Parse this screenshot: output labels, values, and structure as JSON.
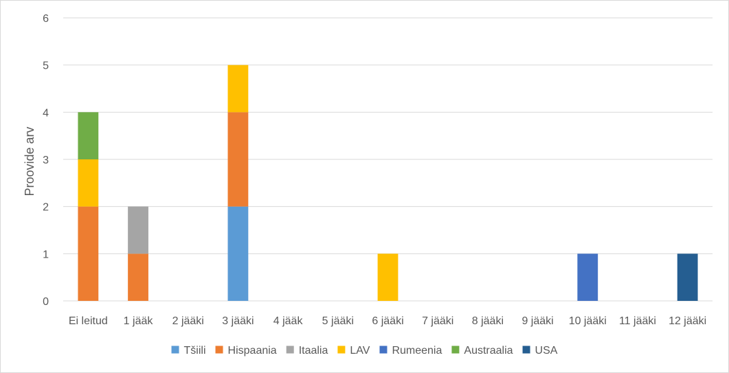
{
  "chart_data": {
    "type": "bar",
    "stacked": true,
    "title": "",
    "xlabel": "",
    "ylabel": "Proovide arv",
    "ylim": [
      0,
      6
    ],
    "yticks": [
      0,
      1,
      2,
      3,
      4,
      5,
      6
    ],
    "grid": true,
    "legend_position": "bottom",
    "categories": [
      "Ei leitud",
      "1 jääk",
      "2 jääki",
      "3 jääki",
      "4 jääk",
      "5 jääki",
      "6 jääki",
      "7 jääki",
      "8 jääki",
      "9 jääki",
      "10 jääki",
      "11 jääki",
      "12 jääki"
    ],
    "series": [
      {
        "name": "Tšiili",
        "color": "#5b9bd5",
        "values": [
          0,
          0,
          0,
          2,
          0,
          0,
          0,
          0,
          0,
          0,
          0,
          0,
          0
        ]
      },
      {
        "name": "Hispaania",
        "color": "#ed7d31",
        "values": [
          2,
          1,
          0,
          2,
          0,
          0,
          0,
          0,
          0,
          0,
          0,
          0,
          0
        ]
      },
      {
        "name": "Itaalia",
        "color": "#a5a5a5",
        "values": [
          0,
          1,
          0,
          0,
          0,
          0,
          0,
          0,
          0,
          0,
          0,
          0,
          0
        ]
      },
      {
        "name": "LAV",
        "color": "#ffc000",
        "values": [
          1,
          0,
          0,
          1,
          0,
          0,
          1,
          0,
          0,
          0,
          0,
          0,
          0
        ]
      },
      {
        "name": "Rumeenia",
        "color": "#4472c4",
        "values": [
          0,
          0,
          0,
          0,
          0,
          0,
          0,
          0,
          0,
          0,
          1,
          0,
          0
        ]
      },
      {
        "name": "Austraalia",
        "color": "#70ad47",
        "values": [
          1,
          0,
          0,
          0,
          0,
          0,
          0,
          0,
          0,
          0,
          0,
          0,
          0
        ]
      },
      {
        "name": "USA",
        "color": "#255e91",
        "values": [
          0,
          0,
          0,
          0,
          0,
          0,
          0,
          0,
          0,
          0,
          0,
          0,
          1
        ]
      }
    ]
  }
}
